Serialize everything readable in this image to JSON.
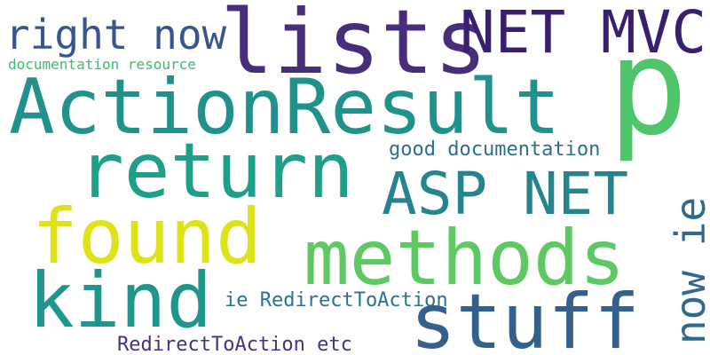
{
  "words": [
    {
      "text": "lists",
      "color": "#472d7b"
    },
    {
      "text": "NET MVC",
      "color": "#3b1f6f"
    },
    {
      "text": "right now",
      "color": "#39568c"
    },
    {
      "text": "documentation resource",
      "color": "#3fbc73"
    },
    {
      "text": "ActionResult",
      "color": "#21918c"
    },
    {
      "text": "p",
      "color": "#4fc46a"
    },
    {
      "text": "return",
      "color": "#1f9e89"
    },
    {
      "text": "good documentation",
      "color": "#2e6f8e"
    },
    {
      "text": "ASP NET",
      "color": "#25858e"
    },
    {
      "text": "found",
      "color": "#dde318"
    },
    {
      "text": "methods",
      "color": "#5ec962"
    },
    {
      "text": "now ie",
      "color": "#31688e"
    },
    {
      "text": "kind",
      "color": "#1f968b"
    },
    {
      "text": "ie RedirectToAction",
      "color": "#2c728e"
    },
    {
      "text": "stuff",
      "color": "#355f8d"
    },
    {
      "text": "RedirectToAction etc",
      "color": "#46327e"
    }
  ]
}
